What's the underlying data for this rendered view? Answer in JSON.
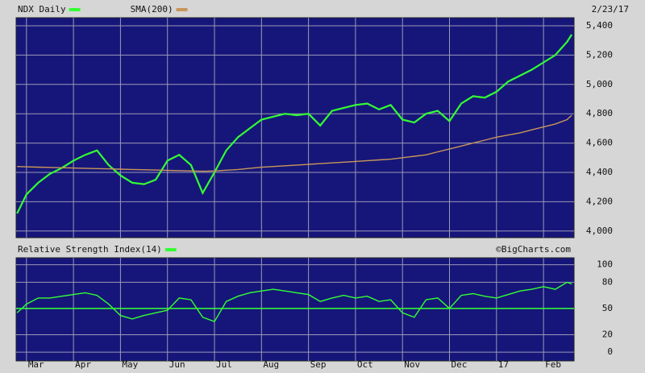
{
  "chart_data": [
    {
      "type": "line",
      "date": "2/23/17",
      "x": [
        -0.2,
        0,
        0.25,
        0.5,
        0.75,
        1,
        1.25,
        1.5,
        1.75,
        2,
        2.25,
        2.5,
        2.75,
        3,
        3.25,
        3.5,
        3.75,
        4,
        4.25,
        4.5,
        4.75,
        5,
        5.25,
        5.5,
        5.75,
        6,
        6.25,
        6.5,
        6.75,
        7,
        7.25,
        7.5,
        7.75,
        8,
        8.25,
        8.5,
        8.75,
        9,
        9.25,
        9.5,
        9.75,
        10,
        10.25,
        10.5,
        10.75,
        11,
        11.25,
        11.5,
        11.6
      ],
      "series": [
        {
          "name": "NDX Daily",
          "color": "#33ff33",
          "values": [
            4120,
            4250,
            4330,
            4390,
            4430,
            4480,
            4520,
            4550,
            4450,
            4380,
            4330,
            4320,
            4350,
            4480,
            4520,
            4450,
            4260,
            4400,
            4550,
            4640,
            4700,
            4760,
            4780,
            4800,
            4790,
            4800,
            4720,
            4820,
            4840,
            4860,
            4870,
            4830,
            4860,
            4760,
            4740,
            4800,
            4820,
            4750,
            4870,
            4920,
            4910,
            4950,
            5020,
            5060,
            5100,
            5150,
            5200,
            5290,
            5340
          ]
        },
        {
          "name": "SMA(200)",
          "color": "#c8965a",
          "values": [
            4440,
            4438,
            4436,
            4434,
            4432,
            4430,
            4428,
            4426,
            4424,
            4422,
            4420,
            4418,
            4416,
            4414,
            4412,
            4410,
            4408,
            4410,
            4415,
            4420,
            4428,
            4435,
            4440,
            4445,
            4450,
            4455,
            4460,
            4465,
            4470,
            4475,
            4480,
            4485,
            4490,
            4500,
            4510,
            4520,
            4540,
            4560,
            4580,
            4600,
            4620,
            4640,
            4655,
            4670,
            4690,
            4710,
            4730,
            4760,
            4790
          ]
        }
      ],
      "xlim": [
        -0.22,
        11.65
      ],
      "ylim": [
        3955,
        5455
      ],
      "yticks": [
        {
          "value": 4000,
          "label": "4,000"
        },
        {
          "value": 4200,
          "label": "4,200"
        },
        {
          "value": 4400,
          "label": "4,400"
        },
        {
          "value": 4600,
          "label": "4,600"
        },
        {
          "value": 4800,
          "label": "4,800"
        },
        {
          "value": 5000,
          "label": "5,000"
        },
        {
          "value": 5200,
          "label": "5,200"
        },
        {
          "value": 5400,
          "label": "5,400"
        }
      ],
      "grid": true
    },
    {
      "type": "line",
      "watermark": "©BigCharts.com",
      "x": [
        -0.2,
        0,
        0.25,
        0.5,
        0.75,
        1,
        1.25,
        1.5,
        1.75,
        2,
        2.25,
        2.5,
        2.75,
        3,
        3.25,
        3.5,
        3.75,
        4,
        4.25,
        4.5,
        4.75,
        5,
        5.25,
        5.5,
        5.75,
        6,
        6.25,
        6.5,
        6.75,
        7,
        7.25,
        7.5,
        7.75,
        8,
        8.25,
        8.5,
        8.75,
        9,
        9.25,
        9.5,
        9.75,
        10,
        10.25,
        10.5,
        10.75,
        11,
        11.25,
        11.5,
        11.6
      ],
      "series": [
        {
          "name": "Relative Strength Index(14)",
          "color": "#33ff33",
          "values": [
            45,
            55,
            62,
            62,
            64,
            66,
            68,
            65,
            55,
            42,
            38,
            42,
            45,
            48,
            62,
            60,
            40,
            35,
            58,
            64,
            68,
            70,
            72,
            70,
            68,
            66,
            58,
            62,
            65,
            62,
            64,
            58,
            60,
            45,
            40,
            60,
            62,
            50,
            65,
            67,
            64,
            62,
            66,
            70,
            72,
            75,
            72,
            80,
            78
          ]
        }
      ],
      "hline": 50,
      "xlim": [
        -0.22,
        11.65
      ],
      "ylim": [
        -10,
        108
      ],
      "xticks": [
        {
          "value": 0,
          "label": "Mar"
        },
        {
          "value": 1,
          "label": "Apr"
        },
        {
          "value": 2,
          "label": "May"
        },
        {
          "value": 3,
          "label": "Jun"
        },
        {
          "value": 4,
          "label": "Jul"
        },
        {
          "value": 5,
          "label": "Aug"
        },
        {
          "value": 6,
          "label": "Sep"
        },
        {
          "value": 7,
          "label": "Oct"
        },
        {
          "value": 8,
          "label": "Nov"
        },
        {
          "value": 9,
          "label": "Dec"
        },
        {
          "value": 10,
          "label": "17"
        },
        {
          "value": 11,
          "label": "Feb"
        }
      ],
      "yticks": [
        0,
        20,
        50,
        80,
        100
      ],
      "grid": true
    }
  ]
}
